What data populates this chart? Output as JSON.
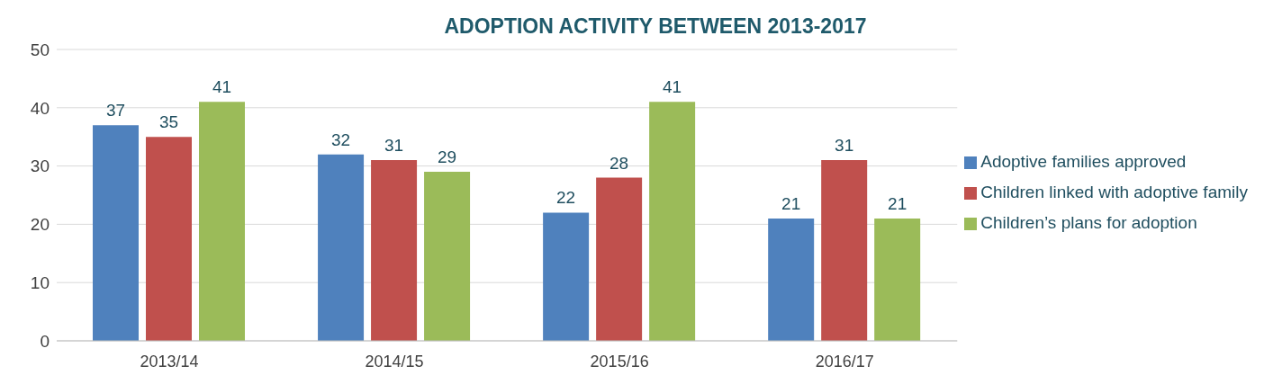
{
  "chart_data": {
    "type": "bar",
    "title": "ADOPTION ACTIVITY BETWEEN 2013-2017",
    "categories": [
      "2013/14",
      "2014/15",
      "2015/16",
      "2016/17"
    ],
    "series": [
      {
        "name": "Adoptive families approved",
        "color": "#4f81bd",
        "values": [
          37,
          32,
          22,
          21
        ]
      },
      {
        "name": "Children linked with adoptive family",
        "color": "#c0504d",
        "values": [
          35,
          31,
          28,
          31
        ]
      },
      {
        "name": "Children’s plans for adoption",
        "color": "#9bbb59",
        "values": [
          41,
          29,
          41,
          21
        ]
      }
    ],
    "ylim": [
      0,
      50
    ],
    "yticks": [
      0,
      10,
      20,
      30,
      40,
      50
    ],
    "grid": "y",
    "legend": "right",
    "data_labels": true
  }
}
